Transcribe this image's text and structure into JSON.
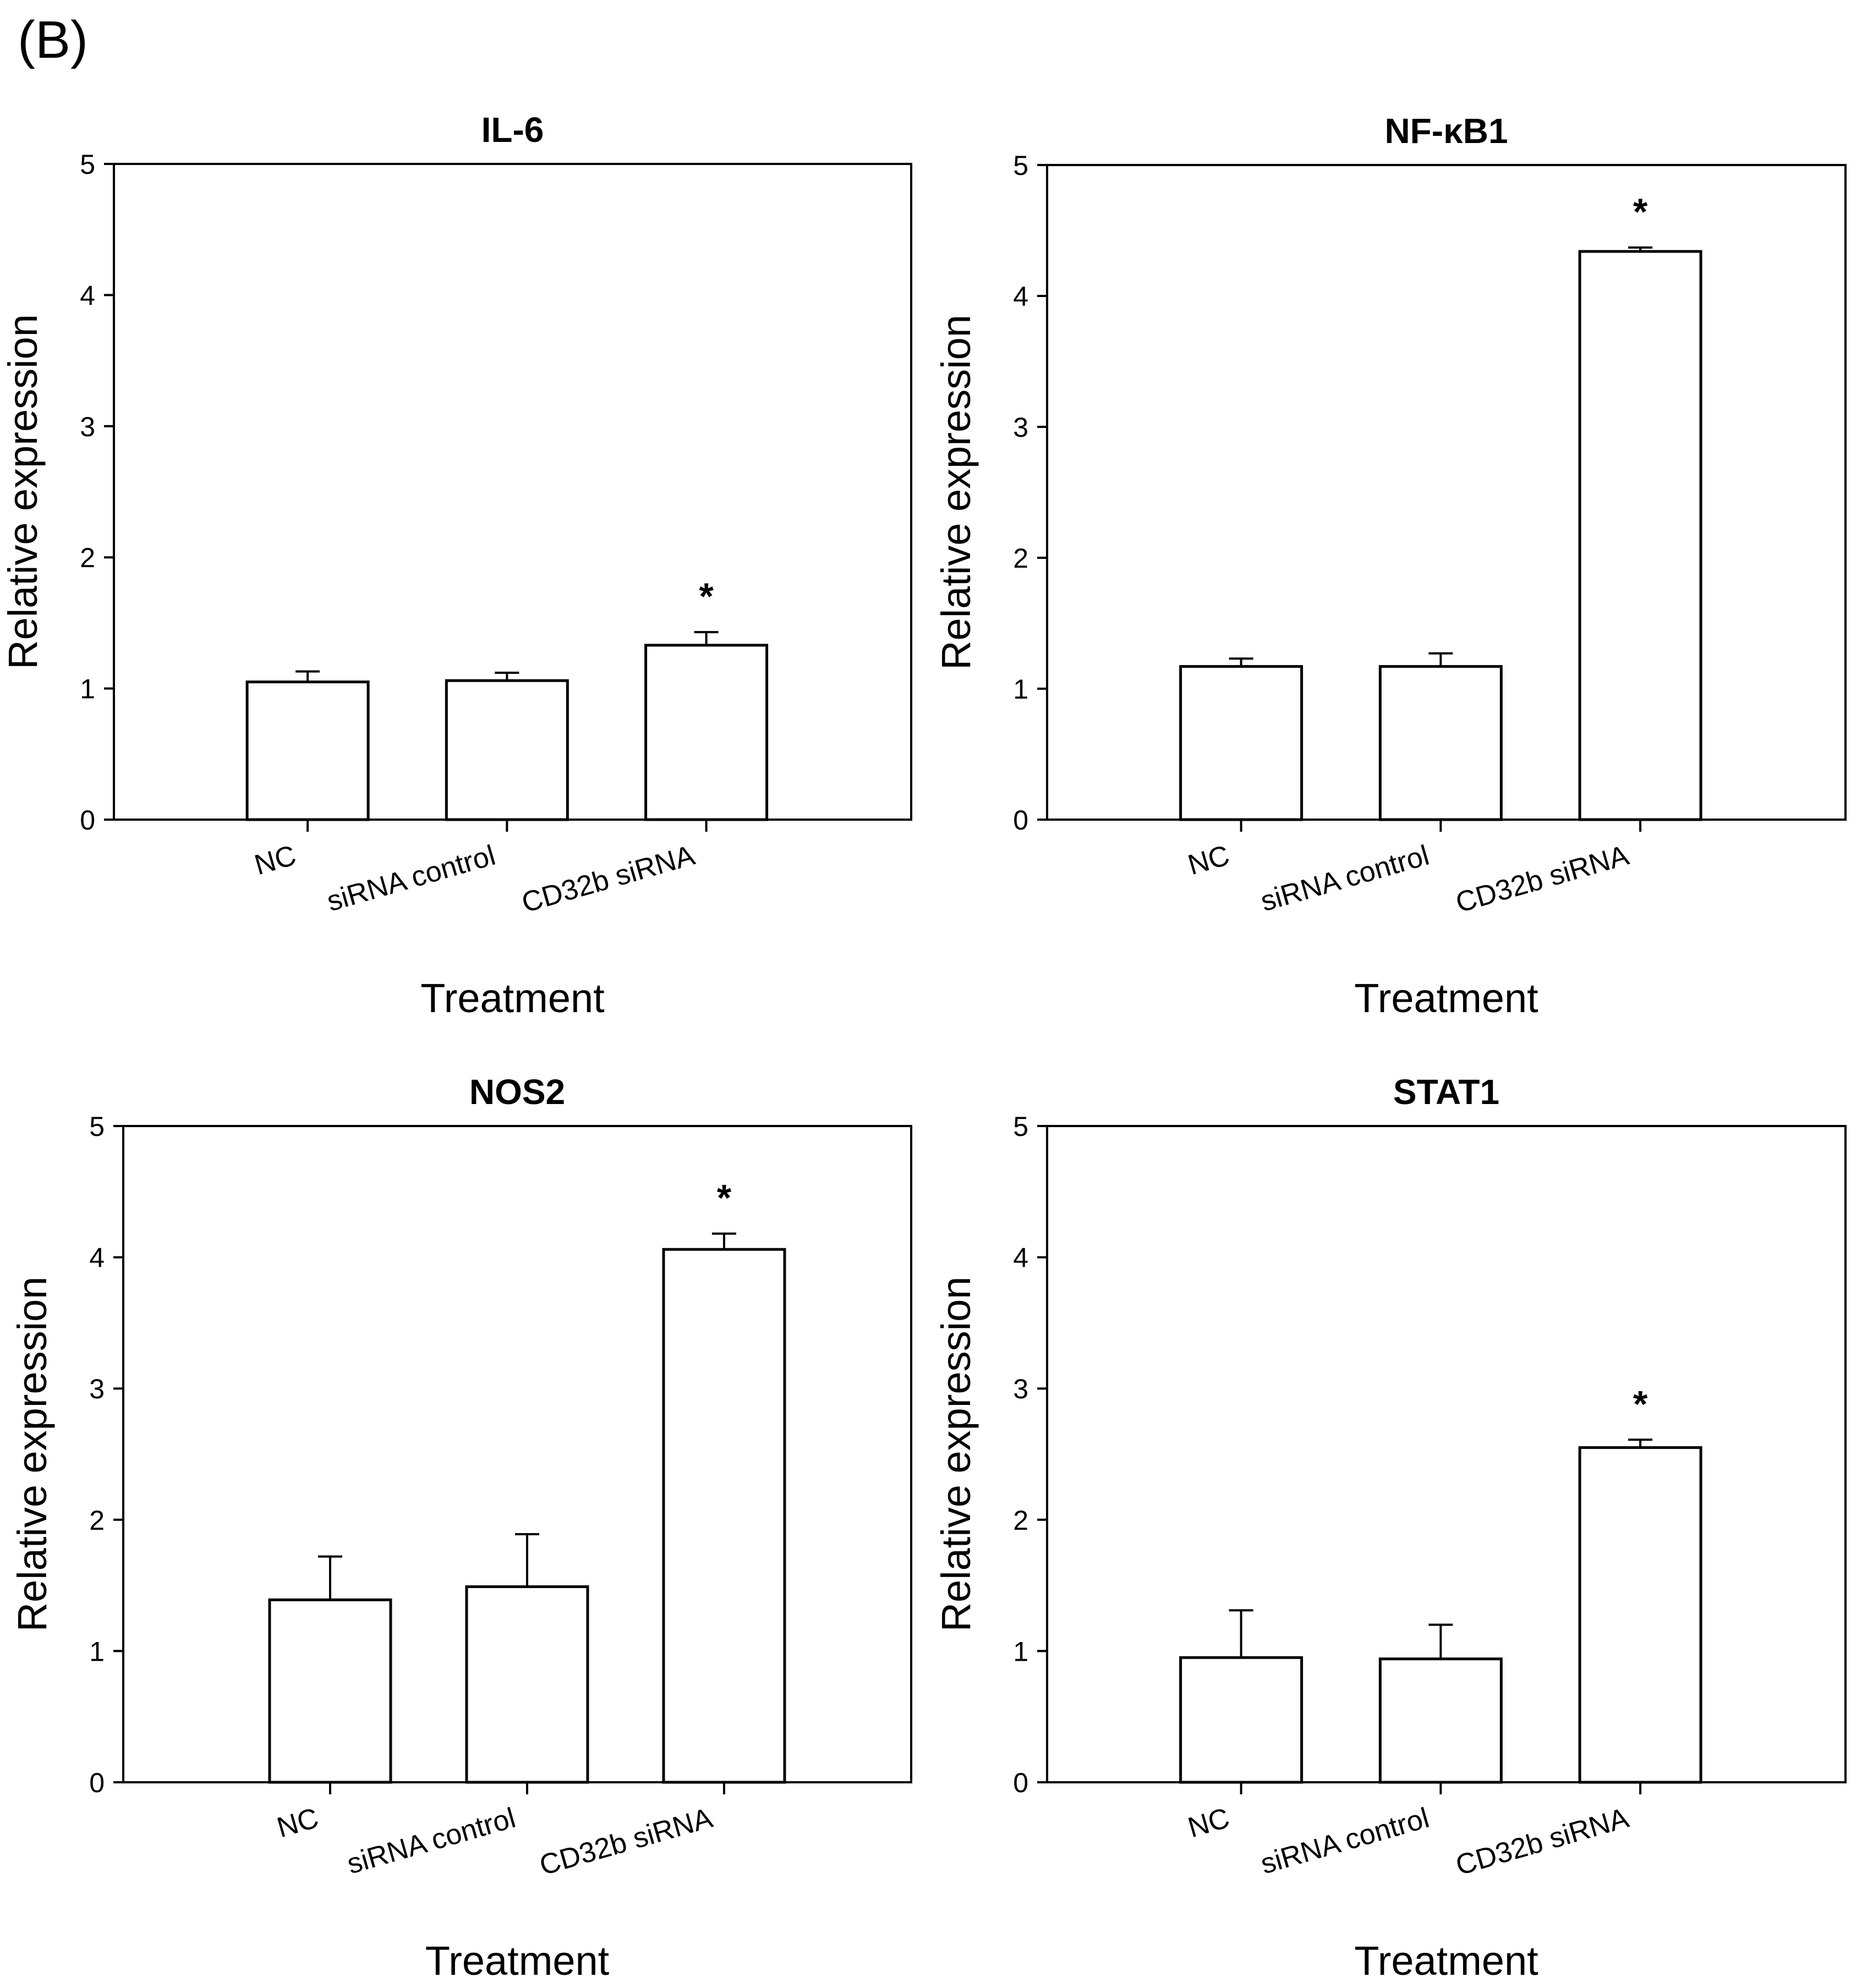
{
  "panel_label": "(B)",
  "chart_data": [
    {
      "type": "bar",
      "title": "IL-6",
      "xlabel": "Treatment",
      "ylabel": "Relative expression",
      "categories": [
        "NC",
        "siRNA control",
        "CD32b siRNA"
      ],
      "values": [
        1.05,
        1.06,
        1.33
      ],
      "errors": [
        0.08,
        0.06,
        0.1
      ],
      "significance": [
        "",
        "",
        "*"
      ],
      "ylim": [
        0,
        5
      ],
      "yticks": [
        0,
        1,
        2,
        3,
        4,
        5
      ],
      "grid": false,
      "bar_fill": "#ffffff",
      "bar_stroke": "#000000"
    },
    {
      "type": "bar",
      "title": "NF-κB1",
      "xlabel": "Treatment",
      "ylabel": "Relative expression",
      "categories": [
        "NC",
        "siRNA control",
        "CD32b siRNA"
      ],
      "values": [
        1.17,
        1.17,
        4.34
      ],
      "errors": [
        0.06,
        0.1,
        0.03
      ],
      "significance": [
        "",
        "",
        "*"
      ],
      "ylim": [
        0,
        5
      ],
      "yticks": [
        0,
        1,
        2,
        3,
        4,
        5
      ],
      "grid": false,
      "bar_fill": "#ffffff",
      "bar_stroke": "#000000"
    },
    {
      "type": "bar",
      "title": "NOS2",
      "xlabel": "Treatment",
      "ylabel": "Relative expression",
      "categories": [
        "NC",
        "siRNA control",
        "CD32b siRNA"
      ],
      "values": [
        1.39,
        1.49,
        4.06
      ],
      "errors": [
        0.33,
        0.4,
        0.12
      ],
      "significance": [
        "",
        "",
        "*"
      ],
      "ylim": [
        0,
        5
      ],
      "yticks": [
        0,
        1,
        2,
        3,
        4,
        5
      ],
      "grid": false,
      "bar_fill": "#ffffff",
      "bar_stroke": "#000000"
    },
    {
      "type": "bar",
      "title": "STAT1",
      "xlabel": "Treatment",
      "ylabel": "Relative expression",
      "categories": [
        "NC",
        "siRNA control",
        "CD32b siRNA"
      ],
      "values": [
        0.95,
        0.94,
        2.55
      ],
      "errors": [
        0.36,
        0.26,
        0.06
      ],
      "significance": [
        "",
        "",
        "*"
      ],
      "ylim": [
        0,
        5
      ],
      "yticks": [
        0,
        1,
        2,
        3,
        4,
        5
      ],
      "grid": false,
      "bar_fill": "#ffffff",
      "bar_stroke": "#000000"
    }
  ]
}
